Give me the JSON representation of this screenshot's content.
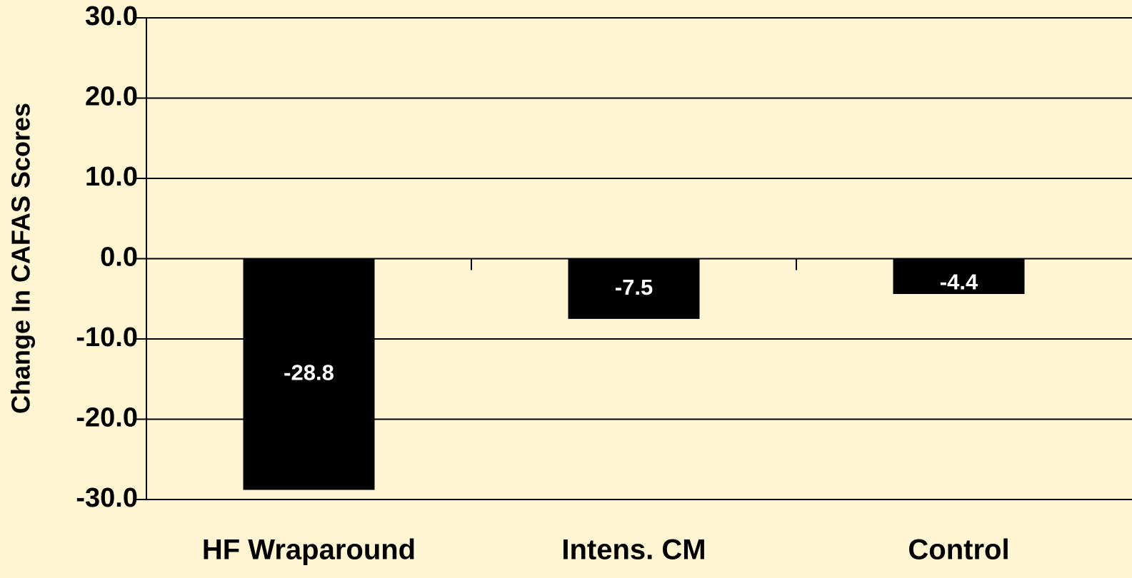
{
  "chart_data": {
    "type": "bar",
    "y_axis_label": "Change In CAFAS Scores",
    "categories": [
      "HF Wraparound",
      "Intens. CM",
      "Control"
    ],
    "values": [
      -28.8,
      -7.5,
      -4.4
    ],
    "color": "#000000",
    "ylim": [
      -30,
      30
    ],
    "yticks": [
      {
        "value": -30,
        "label": "-30.0"
      },
      {
        "value": -20,
        "label": "-20.0"
      },
      {
        "value": -10,
        "label": "-10.0"
      },
      {
        "value": 0,
        "label": "0.0"
      },
      {
        "value": 10,
        "label": "10.0"
      },
      {
        "value": 20,
        "label": "20.0"
      },
      {
        "value": 30,
        "label": "30.0"
      }
    ],
    "grid": true
  }
}
